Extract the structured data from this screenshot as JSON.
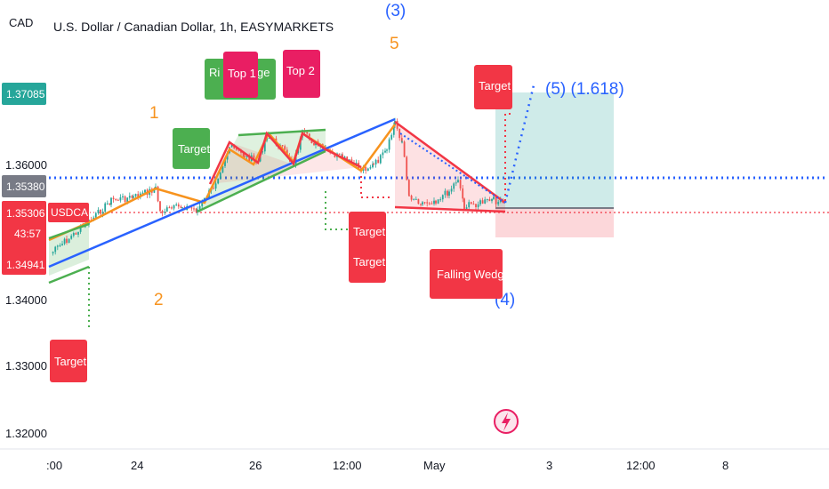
{
  "chart_data": {
    "type": "candlestick",
    "title": "U.S. Dollar / Canadian Dollar, 1h, EASYMARKETS",
    "y_unit": "CAD",
    "y_ticks": [
      "1.32000",
      "1.33000",
      "1.34000",
      "1.36000"
    ],
    "x_ticks": [
      ":00",
      "24",
      "26",
      "12:00",
      "May",
      "3",
      "12:00",
      "8"
    ],
    "ylim": [
      1.3185,
      1.3775
    ],
    "price_tags": [
      {
        "value": "1.37085",
        "color": "#26a69a"
      },
      {
        "value": "1.35380",
        "color": "#787b86"
      },
      {
        "value": "1.35306",
        "color": "#f23645"
      },
      {
        "value": "43:57",
        "color": "#f23645"
      },
      {
        "value": "1.34941",
        "color": "#f23645"
      }
    ],
    "symbol_tag": "USDCAD",
    "wave_labels": [
      {
        "text": "1",
        "color": "#f7931e"
      },
      {
        "text": "2",
        "color": "#f7931e"
      },
      {
        "text": "5",
        "color": "#f7931e"
      },
      {
        "text": "(3)",
        "color": "#2962ff"
      },
      {
        "text": "(4)",
        "color": "#2962ff"
      },
      {
        "text": "(5) (1.618)",
        "color": "#2962ff"
      }
    ],
    "callouts": [
      {
        "text": "Target",
        "color": "#4caf50"
      },
      {
        "text": "Ri",
        "color": "#4caf50"
      },
      {
        "text": "ge",
        "color": "#4caf50"
      },
      {
        "text": "Top 1",
        "color": "#e91e63"
      },
      {
        "text": "Top 2",
        "color": "#e91e63"
      },
      {
        "text": "Target",
        "color": "#f23645"
      },
      {
        "text": "Target",
        "color": "#f23645"
      },
      {
        "text": "Target",
        "color": "#f23645"
      },
      {
        "text": "Target",
        "color": "#f23645"
      },
      {
        "text": "Falling Wedge",
        "color": "#f23645"
      }
    ],
    "colors": {
      "bull": "#26a69a",
      "bear": "#ef5350",
      "orange": "#f7931e",
      "blue": "#2962ff",
      "green": "#4caf50",
      "red": "#f23645"
    }
  }
}
